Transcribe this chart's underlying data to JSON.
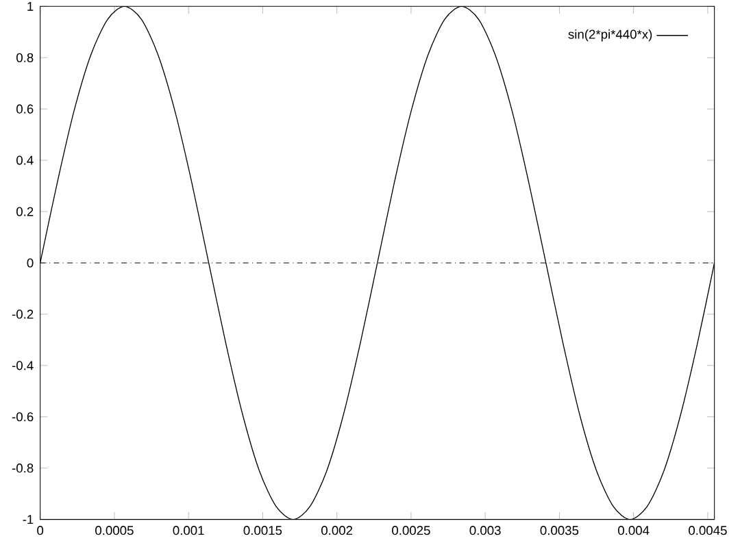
{
  "chart_data": {
    "type": "line",
    "xlim": [
      0,
      0.004545
    ],
    "ylim": [
      -1,
      1
    ],
    "xticks": [
      0,
      0.0005,
      0.001,
      0.0015,
      0.002,
      0.0025,
      0.003,
      0.0035,
      0.004,
      0.0045
    ],
    "yticks": [
      -1,
      -0.8,
      -0.6,
      -0.4,
      -0.2,
      0,
      0.2,
      0.4,
      0.6,
      0.8,
      1
    ],
    "legend": "top right",
    "grid": false,
    "marker": "none",
    "line_style": "solid",
    "ref_lines": [
      {
        "axis": "y",
        "value": 0,
        "color": "#000000",
        "line_style": "dashdot"
      }
    ],
    "series": [
      {
        "name": "sin(2*pi*440*x)",
        "color": "#000000",
        "x": [
          0,
          0.000114,
          0.000227,
          0.000341,
          0.000455,
          0.000568,
          0.000682,
          0.000795,
          0.000909,
          0.001023,
          0.001136,
          0.00125,
          0.001364,
          0.001477,
          0.001591,
          0.001705,
          0.001818,
          0.001932,
          0.002045,
          0.002159,
          0.002273,
          0.002386,
          0.0025,
          0.002614,
          0.002727,
          0.002841,
          0.002955,
          0.003068,
          0.003182,
          0.003295,
          0.003409,
          0.003523,
          0.003636,
          0.00375,
          0.003864,
          0.003977,
          0.004091,
          0.004205,
          0.004318,
          0.004432,
          0.004545
        ],
        "values": [
          0,
          0.31,
          0.59,
          0.81,
          0.95,
          1,
          0.95,
          0.81,
          0.59,
          0.31,
          0,
          -0.31,
          -0.59,
          -0.81,
          -0.95,
          -1,
          -0.95,
          -0.81,
          -0.59,
          -0.31,
          0,
          0.31,
          0.59,
          0.81,
          0.95,
          1,
          0.95,
          0.81,
          0.59,
          0.31,
          0,
          -0.31,
          -0.59,
          -0.81,
          -0.95,
          -1,
          -0.95,
          -0.81,
          -0.59,
          -0.31,
          0
        ]
      }
    ]
  }
}
